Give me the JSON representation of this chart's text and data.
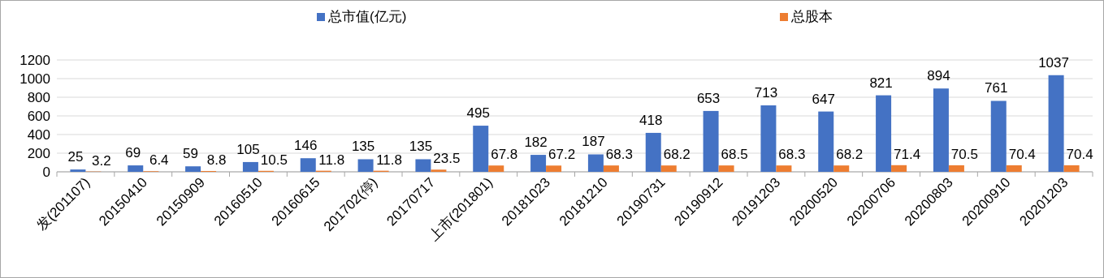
{
  "chart_data": {
    "type": "bar",
    "categories": [
      "发(201107)",
      "20150410",
      "20150909",
      "20160510",
      "20160615",
      "201702(停)",
      "20170717",
      "上市(201801)",
      "20181023",
      "20181210",
      "20190731",
      "20190912",
      "20191203",
      "20200520",
      "20200706",
      "20200803",
      "20200910",
      "20201203"
    ],
    "series": [
      {
        "name": "总市值(亿元)",
        "color": "#4472c4",
        "values": [
          25,
          69,
          59,
          105,
          146,
          135,
          135,
          495,
          182,
          187,
          418,
          653,
          713,
          647,
          821,
          894,
          761,
          1037
        ]
      },
      {
        "name": "总股本",
        "color": "#ed7d31",
        "values": [
          3.2,
          6.4,
          8.8,
          10.5,
          11.8,
          11.8,
          23.5,
          67.8,
          67.2,
          68.3,
          68.2,
          68.5,
          68.3,
          68.2,
          71.4,
          70.5,
          70.4,
          70.4
        ]
      }
    ],
    "ylim": [
      0,
      1200
    ],
    "yticks": [
      0,
      200,
      400,
      600,
      800,
      1000,
      1200
    ],
    "grid": "y",
    "legend": "top",
    "data_labels": true
  }
}
